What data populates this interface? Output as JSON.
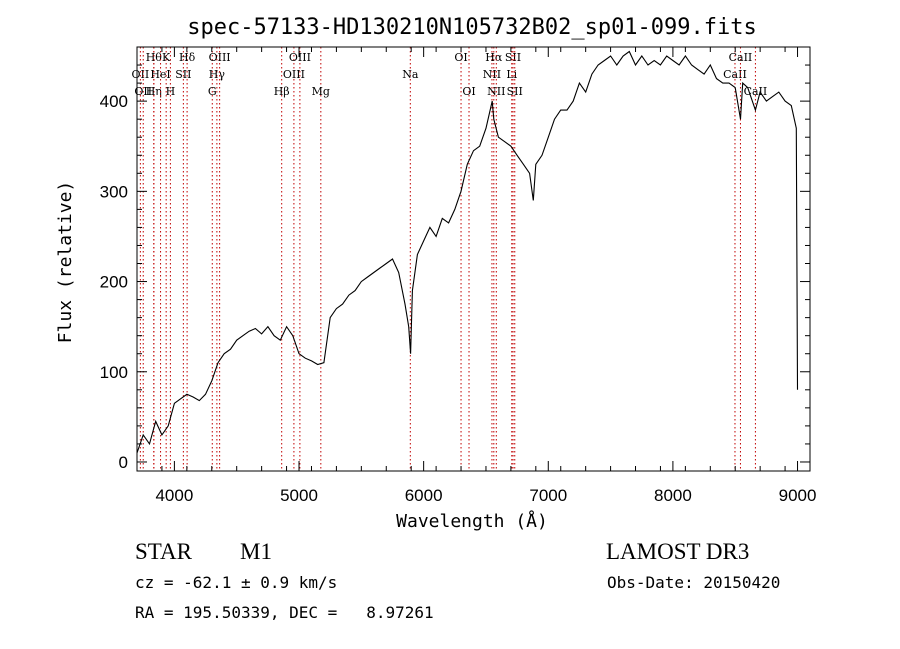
{
  "chart_data": {
    "type": "line",
    "title": "spec-57133-HD130210N105732B02_sp01-099.fits",
    "xlabel": "Wavelength (Å)",
    "ylabel": "Flux (relative)",
    "xlim": [
      3700,
      9100
    ],
    "ylim": [
      -10,
      460
    ],
    "xticks": [
      4000,
      5000,
      6000,
      7000,
      8000,
      9000
    ],
    "yticks": [
      0,
      100,
      200,
      300,
      400
    ],
    "grid": false,
    "series": [
      {
        "x": [
          3700,
          3750,
          3800,
          3850,
          3900,
          3950,
          4000,
          4050,
          4100,
          4150,
          4200,
          4250,
          4300,
          4350,
          4400,
          4450,
          4500,
          4550,
          4600,
          4650,
          4700,
          4750,
          4800,
          4850,
          4900,
          4950,
          5000,
          5050,
          5100,
          5150,
          5200,
          5250,
          5300,
          5350,
          5400,
          5450,
          5500,
          5550,
          5600,
          5650,
          5700,
          5750,
          5800,
          5850,
          5880,
          5895,
          5910,
          5950,
          6000,
          6050,
          6100,
          6150,
          6200,
          6250,
          6300,
          6350,
          6400,
          6450,
          6500,
          6550,
          6563,
          6600,
          6650,
          6700,
          6750,
          6800,
          6850,
          6880,
          6900,
          6950,
          7000,
          7050,
          7100,
          7150,
          7200,
          7250,
          7300,
          7350,
          7400,
          7450,
          7500,
          7550,
          7600,
          7650,
          7700,
          7750,
          7800,
          7850,
          7900,
          7950,
          8000,
          8050,
          8100,
          8150,
          8200,
          8250,
          8300,
          8350,
          8400,
          8450,
          8500,
          8542,
          8560,
          8600,
          8662,
          8700,
          8750,
          8800,
          8850,
          8900,
          8950,
          8990,
          9000
        ],
        "y": [
          10,
          30,
          20,
          45,
          30,
          40,
          65,
          70,
          75,
          72,
          68,
          75,
          90,
          110,
          120,
          125,
          135,
          140,
          145,
          148,
          142,
          150,
          140,
          135,
          150,
          140,
          120,
          115,
          112,
          108,
          110,
          160,
          170,
          175,
          185,
          190,
          200,
          205,
          210,
          215,
          220,
          225,
          210,
          175,
          150,
          120,
          190,
          230,
          245,
          260,
          250,
          270,
          265,
          280,
          300,
          330,
          345,
          350,
          370,
          400,
          380,
          360,
          355,
          350,
          340,
          330,
          320,
          290,
          330,
          340,
          360,
          380,
          390,
          390,
          400,
          420,
          410,
          430,
          440,
          445,
          450,
          440,
          450,
          455,
          440,
          450,
          440,
          445,
          440,
          450,
          445,
          440,
          450,
          440,
          435,
          430,
          440,
          425,
          420,
          420,
          415,
          380,
          420,
          415,
          390,
          410,
          400,
          405,
          410,
          400,
          395,
          370,
          80
        ]
      }
    ],
    "line_markers": [
      {
        "wl": 3727,
        "label": "OII",
        "row": 2
      },
      {
        "wl": 3750,
        "label": "OII",
        "row": 3
      },
      {
        "wl": 3835,
        "label": "Hθ",
        "row": 1
      },
      {
        "wl": 3835,
        "label": "Hη",
        "row": 3
      },
      {
        "wl": 3889,
        "label": "HeI",
        "row": 2
      },
      {
        "wl": 3934,
        "label": "K",
        "row": 1
      },
      {
        "wl": 3968,
        "label": "H",
        "row": 3
      },
      {
        "wl": 4072,
        "label": "SII",
        "row": 2
      },
      {
        "wl": 4102,
        "label": "Hδ",
        "row": 1
      },
      {
        "wl": 4304,
        "label": "G",
        "row": 3
      },
      {
        "wl": 4341,
        "label": "Hγ",
        "row": 2
      },
      {
        "wl": 4363,
        "label": "OIII",
        "row": 1
      },
      {
        "wl": 4861,
        "label": "Hβ",
        "row": 3
      },
      {
        "wl": 4959,
        "label": "OIII",
        "row": 2
      },
      {
        "wl": 5007,
        "label": "OIII",
        "row": 1
      },
      {
        "wl": 5175,
        "label": "Mg",
        "row": 3
      },
      {
        "wl": 5893,
        "label": "Na",
        "row": 2
      },
      {
        "wl": 6300,
        "label": "OI",
        "row": 1
      },
      {
        "wl": 6364,
        "label": "OI",
        "row": 3
      },
      {
        "wl": 6548,
        "label": "NII",
        "row": 2
      },
      {
        "wl": 6563,
        "label": "Hα",
        "row": 1
      },
      {
        "wl": 6583,
        "label": "NII",
        "row": 3
      },
      {
        "wl": 6707,
        "label": "Li",
        "row": 2
      },
      {
        "wl": 6717,
        "label": "SII",
        "row": 1
      },
      {
        "wl": 6731,
        "label": "SII",
        "row": 3
      },
      {
        "wl": 8498,
        "label": "CaII",
        "row": 2
      },
      {
        "wl": 8542,
        "label": "CaII",
        "row": 1
      },
      {
        "wl": 8662,
        "label": "CaII",
        "row": 3
      }
    ],
    "colors": {
      "spectrum": "#000000",
      "line_markers": "#c00000",
      "axes": "#000000"
    }
  },
  "info": {
    "object_class": "STAR",
    "subclass": "M1",
    "survey": "LAMOST DR3",
    "cz": "cz = -62.1 ± 0.9 km/s",
    "obs_date": "Obs-Date: 20150420",
    "coords": "RA = 195.50339, DEC =   8.97261"
  }
}
